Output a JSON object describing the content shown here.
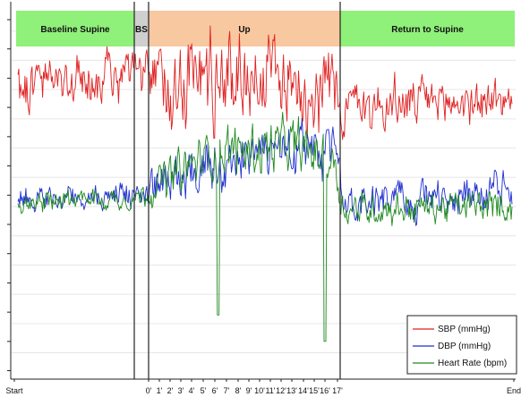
{
  "chart_data": {
    "type": "line",
    "title": "",
    "xlabel": "",
    "ylabel": "",
    "grid": true,
    "legend_placement": "bottom-right",
    "x_tick_labels": [
      "Start",
      "0'",
      "1'",
      "2'",
      "3'",
      "4'",
      "5'",
      "6'",
      "7'",
      "8'",
      "9'",
      "10'",
      "11'",
      "12'",
      "13'",
      "14'",
      "15'",
      "16'",
      "17'",
      "End"
    ],
    "phases": [
      {
        "label": "Baseline Supine",
        "color": "#8ff07a"
      },
      {
        "label": "BS",
        "color": "#cfcfcf"
      },
      {
        "label": "Up",
        "color": "#f8c8a0"
      },
      {
        "label": "Return to Supine",
        "color": "#8ff07a"
      }
    ],
    "series": [
      {
        "name": "SBP (mmHg)",
        "color": "#e02020",
        "trend": [
          {
            "t": 0.0,
            "level": 0.78,
            "noise": 0.045
          },
          {
            "t": 0.24,
            "level": 0.8,
            "noise": 0.045
          },
          {
            "t": 0.27,
            "level": 0.79,
            "noise": 0.05
          },
          {
            "t": 0.3,
            "level": 0.8,
            "noise": 0.09
          },
          {
            "t": 0.5,
            "level": 0.81,
            "noise": 0.09
          },
          {
            "t": 0.64,
            "level": 0.77,
            "noise": 0.08
          },
          {
            "t": 0.655,
            "level": 0.72,
            "noise": 0.05
          },
          {
            "t": 1.0,
            "level": 0.74,
            "noise": 0.04
          }
        ]
      },
      {
        "name": "DBP (mmHg)",
        "color": "#1e2fd0",
        "trend": [
          {
            "t": 0.0,
            "level": 0.48,
            "noise": 0.025
          },
          {
            "t": 0.24,
            "level": 0.49,
            "noise": 0.025
          },
          {
            "t": 0.3,
            "level": 0.52,
            "noise": 0.04
          },
          {
            "t": 0.4,
            "level": 0.59,
            "noise": 0.05
          },
          {
            "t": 0.55,
            "level": 0.61,
            "noise": 0.05
          },
          {
            "t": 0.64,
            "level": 0.58,
            "noise": 0.05
          },
          {
            "t": 0.66,
            "level": 0.47,
            "noise": 0.035
          },
          {
            "t": 1.0,
            "level": 0.49,
            "noise": 0.035
          }
        ]
      },
      {
        "name": "Heart Rate (bpm)",
        "color": "#1f8a1f",
        "trend": [
          {
            "t": 0.0,
            "level": 0.47,
            "noise": 0.02
          },
          {
            "t": 0.24,
            "level": 0.48,
            "noise": 0.02
          },
          {
            "t": 0.3,
            "level": 0.53,
            "noise": 0.04
          },
          {
            "t": 0.4,
            "level": 0.6,
            "noise": 0.05
          },
          {
            "t": 0.55,
            "level": 0.62,
            "noise": 0.05
          },
          {
            "t": 0.64,
            "level": 0.58,
            "noise": 0.05
          },
          {
            "t": 0.66,
            "level": 0.45,
            "noise": 0.03
          },
          {
            "t": 1.0,
            "level": 0.46,
            "noise": 0.03
          }
        ],
        "dips": [
          {
            "t": 0.405,
            "depth": 0.17
          },
          {
            "t": 0.622,
            "depth": 0.1
          }
        ]
      }
    ]
  }
}
